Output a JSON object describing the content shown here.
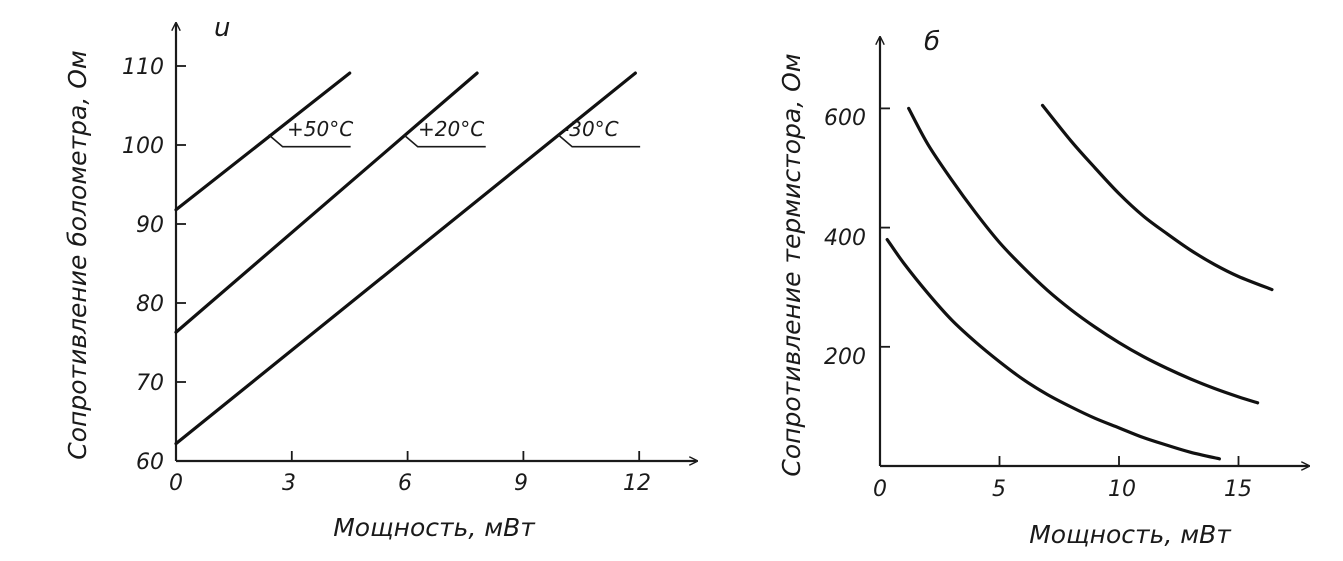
{
  "chart_data": [
    {
      "type": "line",
      "panel_label": "u",
      "xlabel": "Мощность, мВт",
      "ylabel": "Сопротивление болометра, Ом",
      "xlim": [
        0,
        13.5
      ],
      "ylim": [
        60,
        115
      ],
      "xticks": [
        "0",
        "3",
        "6",
        "9",
        "12"
      ],
      "yticks": [
        "60",
        "70",
        "80",
        "90",
        "100",
        "110"
      ],
      "series": [
        {
          "name": "+50°С",
          "x": [
            0,
            4.5
          ],
          "y": [
            91.8,
            109.1
          ],
          "label_at": [
            2.4,
            101.3
          ]
        },
        {
          "name": "+20°С",
          "x": [
            0,
            7.8
          ],
          "y": [
            76.3,
            109.1
          ],
          "label_at": [
            5.9,
            101.3
          ]
        },
        {
          "name": "-30°С",
          "x": [
            0,
            11.9
          ],
          "y": [
            62.2,
            109.1
          ],
          "label_at": [
            9.9,
            101.3
          ]
        }
      ]
    },
    {
      "type": "line",
      "panel_label": "б",
      "xlabel": "Мощность, мВт",
      "ylabel": "Сопротивление термистора, Ом",
      "xlim": [
        0,
        17.8
      ],
      "ylim": [
        0,
        700
      ],
      "xticks": [
        "0",
        "5",
        "10",
        "15"
      ],
      "yticks": [
        "200",
        "400",
        "600"
      ],
      "series": [
        {
          "x": [
            0.3,
            1,
            2,
            3,
            4,
            5,
            6,
            7,
            8,
            9,
            10,
            11,
            12,
            13,
            14.2
          ],
          "y": [
            380,
            340,
            290,
            245,
            208,
            175,
            145,
            120,
            99,
            80,
            64,
            48,
            35,
            23,
            12
          ]
        },
        {
          "x": [
            1.2,
            2,
            3,
            4,
            5,
            6,
            7,
            8,
            9,
            10,
            11,
            12,
            13,
            14,
            15,
            15.8
          ],
          "y": [
            600,
            540,
            480,
            425,
            375,
            333,
            295,
            262,
            233,
            207,
            184,
            164,
            146,
            130,
            116,
            106
          ]
        },
        {
          "x": [
            6.8,
            8,
            9,
            10,
            11,
            12,
            13,
            14,
            15,
            16.4
          ],
          "y": [
            605,
            545,
            500,
            457,
            420,
            390,
            362,
            338,
            318,
            296
          ]
        }
      ]
    }
  ]
}
